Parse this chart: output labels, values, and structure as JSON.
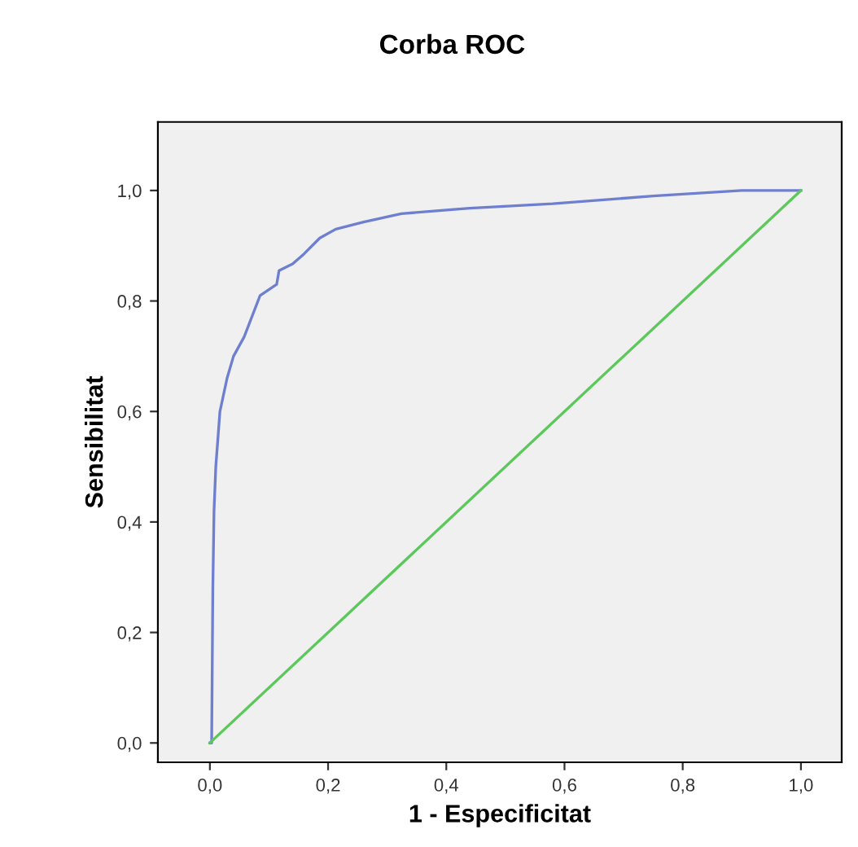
{
  "chart_data": {
    "type": "line",
    "title": "Corba ROC",
    "xlabel": "1 - Especificitat",
    "ylabel": "Sensibilitat",
    "xlim": [
      -0.088,
      1.069
    ],
    "ylim": [
      -0.035,
      1.124
    ],
    "xticks": [
      {
        "value": 0,
        "label": "0,0"
      },
      {
        "value": 0.2,
        "label": "0,2"
      },
      {
        "value": 0.4,
        "label": "0,4"
      },
      {
        "value": 0.6,
        "label": "0,6"
      },
      {
        "value": 0.8,
        "label": "0,8"
      },
      {
        "value": 1,
        "label": "1,0"
      }
    ],
    "yticks": [
      {
        "value": 0,
        "label": "0,0"
      },
      {
        "value": 0.2,
        "label": "0,2"
      },
      {
        "value": 0.4,
        "label": "0,4"
      },
      {
        "value": 0.6,
        "label": "0,6"
      },
      {
        "value": 0.8,
        "label": "0,8"
      },
      {
        "value": 1,
        "label": "1,0"
      }
    ],
    "grid": false,
    "marker": "none",
    "line_style": "solid",
    "series": [
      {
        "color": "#6f7fd0",
        "x": [
          0.0,
          0.003,
          0.005,
          0.007,
          0.01,
          0.017,
          0.029,
          0.04,
          0.058,
          0.085,
          0.113,
          0.117,
          0.14,
          0.159,
          0.186,
          0.213,
          0.26,
          0.324,
          0.44,
          0.58,
          0.75,
          0.9,
          1.0
        ],
        "values": [
          0.0,
          0.0,
          0.28,
          0.42,
          0.5,
          0.6,
          0.66,
          0.7,
          0.735,
          0.81,
          0.83,
          0.855,
          0.867,
          0.885,
          0.914,
          0.93,
          0.943,
          0.958,
          0.968,
          0.976,
          0.99,
          1.0,
          1.0
        ]
      },
      {
        "color": "#5cc85c",
        "x": [
          0,
          1
        ],
        "values": [
          0,
          1
        ]
      }
    ]
  }
}
